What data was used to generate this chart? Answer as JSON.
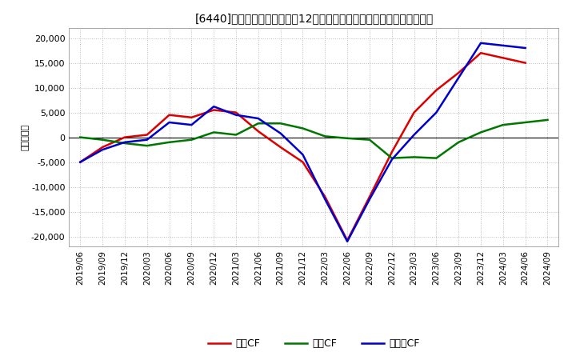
{
  "title": "[6440]　キャッシュフローの12か月移動合計の対前年同期増減額の推移",
  "ylabel": "（百万円）",
  "background_color": "#ffffff",
  "plot_bg_color": "#ffffff",
  "grid_color": "#bbbbbb",
  "ylim": [
    -22000,
    22000
  ],
  "yticks": [
    -20000,
    -15000,
    -10000,
    -5000,
    0,
    5000,
    10000,
    15000,
    20000
  ],
  "x_labels": [
    "2019/06",
    "2019/09",
    "2019/12",
    "2020/03",
    "2020/06",
    "2020/09",
    "2020/12",
    "2021/03",
    "2021/06",
    "2021/09",
    "2021/12",
    "2022/03",
    "2022/06",
    "2022/09",
    "2022/12",
    "2023/03",
    "2023/06",
    "2023/09",
    "2023/12",
    "2024/03",
    "2024/06",
    "2024/09"
  ],
  "operating_cf": [
    -5000,
    -2000,
    0,
    500,
    4500,
    4000,
    5500,
    5000,
    1200,
    -2000,
    -5000,
    -12000,
    -20800,
    -12000,
    -3000,
    5000,
    9500,
    13000,
    17000,
    16000,
    15000,
    null
  ],
  "investing_cf": [
    0,
    -500,
    -1200,
    -1700,
    -1000,
    -500,
    1000,
    500,
    2800,
    2800,
    1800,
    200,
    -200,
    -500,
    -4200,
    -4000,
    -4200,
    -1000,
    1000,
    2500,
    3000,
    3500
  ],
  "free_cf": [
    -5000,
    -2500,
    -1000,
    -500,
    3000,
    2500,
    6200,
    4500,
    3800,
    800,
    -3500,
    -12500,
    -21000,
    -12500,
    -4500,
    500,
    5000,
    12000,
    19000,
    18500,
    18000,
    null
  ],
  "series_colors": {
    "operating": "#dd0000",
    "investing": "#007700",
    "free": "#0000cc"
  },
  "legend_labels": {
    "operating": "営業CF",
    "investing": "投資CF",
    "free": "フリーCF"
  },
  "line_width": 1.8
}
